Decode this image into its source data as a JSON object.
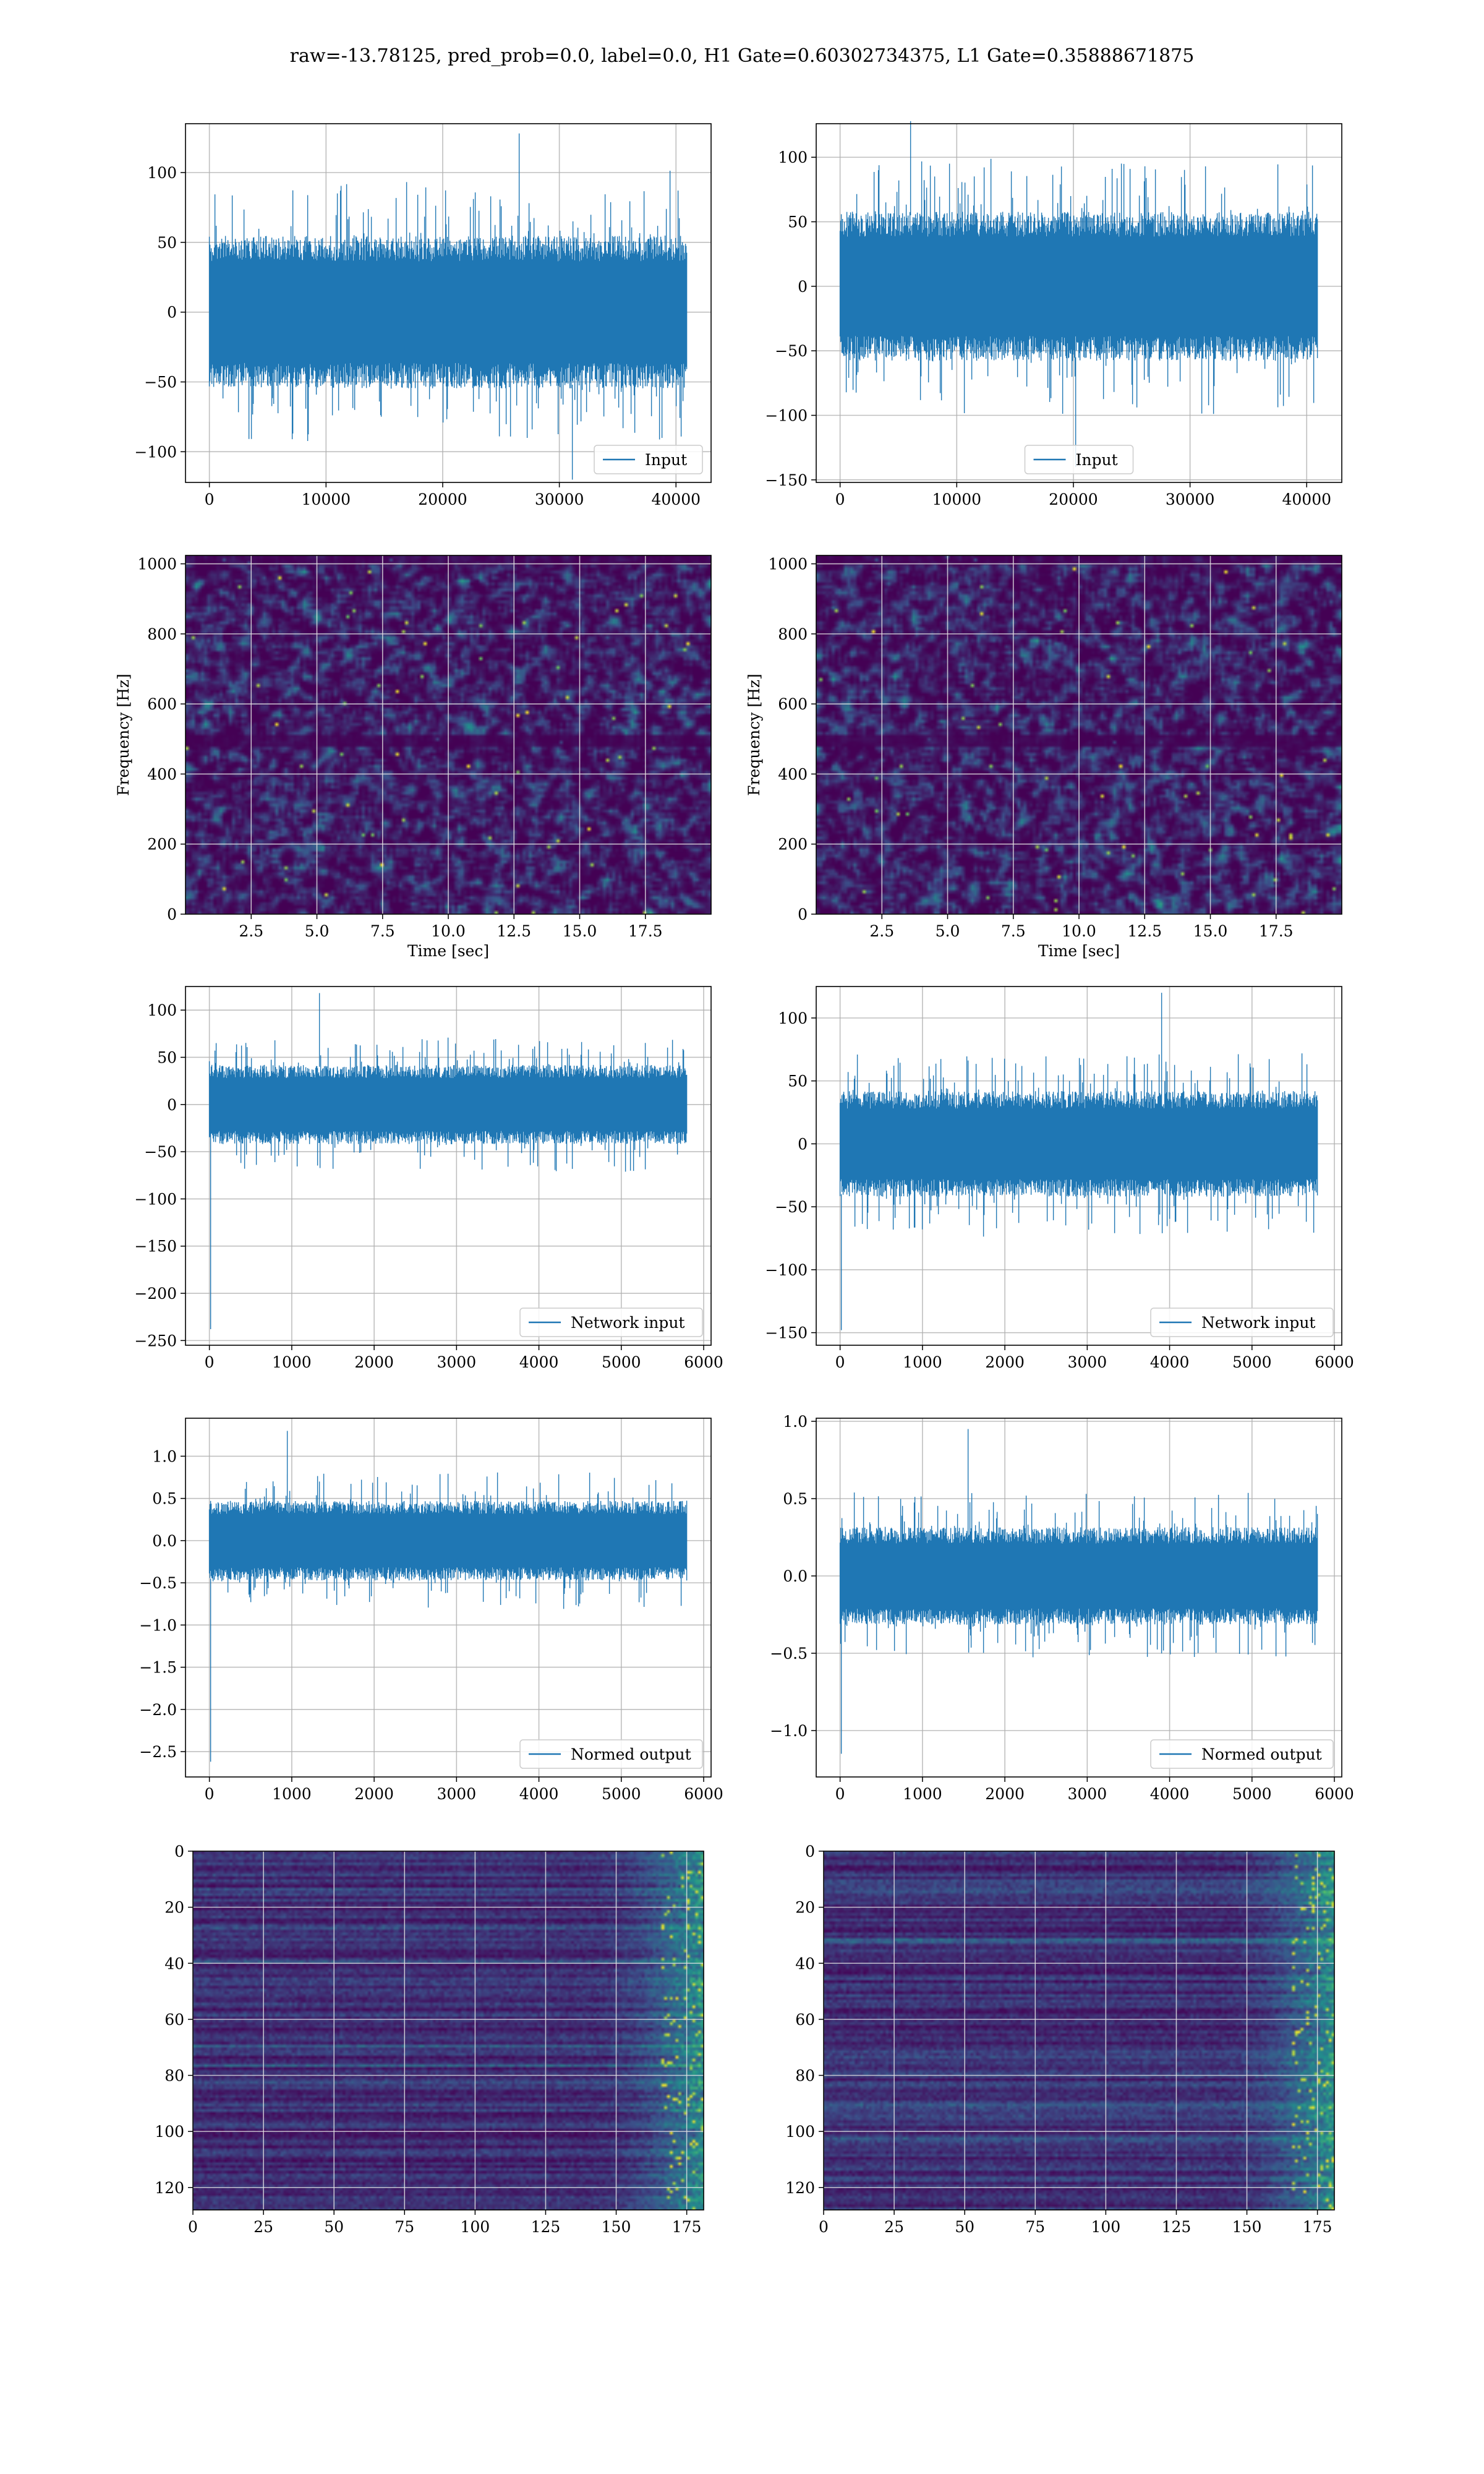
{
  "figure": {
    "suptitle": "raw=-13.78125, pred_prob=0.0, label=0.0, H1 Gate=0.60302734375, L1 Gate=0.35888671875"
  },
  "colors": {
    "line": "#1f77b4",
    "grid": "#b0b0b0",
    "viridis": [
      "#440154",
      "#3b528b",
      "#21918c",
      "#5ec962",
      "#fde725"
    ]
  },
  "chart_data": [
    {
      "id": "h1-input",
      "type": "line",
      "legend": "Input",
      "legend_loc": "lower right",
      "x_max": 40960,
      "xlim": [
        -2048,
        43008
      ],
      "ylim": [
        -122,
        135
      ],
      "xticks": [
        0,
        10000,
        20000,
        30000,
        40000
      ],
      "xtick_labels": [
        "0",
        "10000",
        "20000",
        "30000",
        "40000"
      ],
      "yticks": [
        -100,
        -50,
        0,
        50,
        100
      ],
      "ytick_labels": [
        "−100",
        "−50",
        "0",
        "50",
        "100"
      ],
      "amplitude": 52,
      "peak_high": 128,
      "peak_low": -120,
      "grid": true
    },
    {
      "id": "l1-input",
      "type": "line",
      "legend": "Input",
      "legend_loc": "lower center",
      "x_max": 40960,
      "xlim": [
        -2048,
        43008
      ],
      "ylim": [
        -152,
        126
      ],
      "xticks": [
        0,
        10000,
        20000,
        30000,
        40000
      ],
      "xtick_labels": [
        "0",
        "10000",
        "20000",
        "30000",
        "40000"
      ],
      "yticks": [
        -150,
        -100,
        -50,
        0,
        50,
        100
      ],
      "ytick_labels": [
        "−150",
        "−100",
        "−50",
        "0",
        "50",
        "100"
      ],
      "amplitude": 55,
      "peak_high": 128,
      "peak_low": -140,
      "grid": true
    },
    {
      "id": "h1-spectrogram",
      "type": "heatmap",
      "xlim": [
        0,
        20
      ],
      "ylim": [
        0,
        1024
      ],
      "xticks": [
        2.5,
        5.0,
        7.5,
        10.0,
        12.5,
        15.0,
        17.5
      ],
      "xtick_labels": [
        "2.5",
        "5.0",
        "7.5",
        "10.0",
        "12.5",
        "15.0",
        "17.5"
      ],
      "yticks": [
        0,
        200,
        400,
        600,
        800,
        1000
      ],
      "ytick_labels": [
        "0",
        "200",
        "400",
        "600",
        "800",
        "1000"
      ],
      "xlabel": "Time [sec]",
      "ylabel": "Frequency [Hz]",
      "grid": true
    },
    {
      "id": "l1-spectrogram",
      "type": "heatmap",
      "xlim": [
        0,
        20
      ],
      "ylim": [
        0,
        1024
      ],
      "xticks": [
        2.5,
        5.0,
        7.5,
        10.0,
        12.5,
        15.0,
        17.5
      ],
      "xtick_labels": [
        "2.5",
        "5.0",
        "7.5",
        "10.0",
        "12.5",
        "15.0",
        "17.5"
      ],
      "yticks": [
        0,
        200,
        400,
        600,
        800,
        1000
      ],
      "ytick_labels": [
        "0",
        "200",
        "400",
        "600",
        "800",
        "1000"
      ],
      "xlabel": "Time [sec]",
      "ylabel": "Frequency [Hz]",
      "grid": true
    },
    {
      "id": "h1-network-input",
      "type": "line",
      "legend": "Network input",
      "legend_loc": "lower right",
      "x_max": 5800,
      "xlim": [
        -290,
        6090
      ],
      "ylim": [
        -255,
        125
      ],
      "xticks": [
        0,
        1000,
        2000,
        3000,
        4000,
        5000,
        6000
      ],
      "xtick_labels": [
        "0",
        "1000",
        "2000",
        "3000",
        "4000",
        "5000",
        "6000"
      ],
      "yticks": [
        -250,
        -200,
        -150,
        -100,
        -50,
        0,
        50,
        100
      ],
      "ytick_labels": [
        "−250",
        "−200",
        "−150",
        "−100",
        "−50",
        "0",
        "50",
        "100"
      ],
      "amplitude": 40,
      "peak_high": 118,
      "peak_low": -238,
      "grid": true
    },
    {
      "id": "l1-network-input",
      "type": "line",
      "legend": "Network input",
      "legend_loc": "lower right",
      "x_max": 5800,
      "xlim": [
        -290,
        6090
      ],
      "ylim": [
        -160,
        125
      ],
      "xticks": [
        0,
        1000,
        2000,
        3000,
        4000,
        5000,
        6000
      ],
      "xtick_labels": [
        "0",
        "1000",
        "2000",
        "3000",
        "4000",
        "5000",
        "6000"
      ],
      "yticks": [
        -150,
        -100,
        -50,
        0,
        50,
        100
      ],
      "ytick_labels": [
        "−150",
        "−100",
        "−50",
        "0",
        "50",
        "100"
      ],
      "amplitude": 40,
      "peak_high": 120,
      "peak_low": -148,
      "grid": true
    },
    {
      "id": "h1-normed-output",
      "type": "line",
      "legend": "Normed output",
      "legend_loc": "lower right",
      "x_max": 5800,
      "xlim": [
        -290,
        6090
      ],
      "ylim": [
        -2.8,
        1.45
      ],
      "xticks": [
        0,
        1000,
        2000,
        3000,
        4000,
        5000,
        6000
      ],
      "xtick_labels": [
        "0",
        "1000",
        "2000",
        "3000",
        "4000",
        "5000",
        "6000"
      ],
      "yticks": [
        -2.5,
        -2.0,
        -1.5,
        -1.0,
        -0.5,
        0.0,
        0.5,
        1.0
      ],
      "ytick_labels": [
        "−2.5",
        "−2.0",
        "−1.5",
        "−1.0",
        "−0.5",
        "0.0",
        "0.5",
        "1.0"
      ],
      "amplitude": 0.45,
      "peak_high": 1.3,
      "peak_low": -2.62,
      "grid": true
    },
    {
      "id": "l1-normed-output",
      "type": "line",
      "legend": "Normed output",
      "legend_loc": "lower right",
      "x_max": 5800,
      "xlim": [
        -290,
        6090
      ],
      "ylim": [
        -1.3,
        1.02
      ],
      "xticks": [
        0,
        1000,
        2000,
        3000,
        4000,
        5000,
        6000
      ],
      "xtick_labels": [
        "0",
        "1000",
        "2000",
        "3000",
        "4000",
        "5000",
        "6000"
      ],
      "yticks": [
        -1.0,
        -0.5,
        0.0,
        0.5,
        1.0
      ],
      "ytick_labels": [
        "−1.0",
        "−0.5",
        "0.0",
        "0.5",
        "1.0"
      ],
      "amplitude": 0.3,
      "peak_high": 0.95,
      "peak_low": -1.15,
      "grid": true
    },
    {
      "id": "h1-activation-map",
      "type": "heatmap",
      "xlim": [
        0,
        181
      ],
      "ylim": [
        128,
        0
      ],
      "xticks": [
        0,
        25,
        50,
        75,
        100,
        125,
        150,
        175
      ],
      "xtick_labels": [
        "0",
        "25",
        "50",
        "75",
        "100",
        "125",
        "150",
        "175"
      ],
      "yticks": [
        0,
        20,
        40,
        60,
        80,
        100,
        120
      ],
      "ytick_labels": [
        "0",
        "20",
        "40",
        "60",
        "80",
        "100",
        "120"
      ],
      "grid": true
    },
    {
      "id": "l1-activation-map",
      "type": "heatmap",
      "xlim": [
        0,
        181
      ],
      "ylim": [
        128,
        0
      ],
      "xticks": [
        0,
        25,
        50,
        75,
        100,
        125,
        150,
        175
      ],
      "xtick_labels": [
        "0",
        "25",
        "50",
        "75",
        "100",
        "125",
        "150",
        "175"
      ],
      "yticks": [
        0,
        20,
        40,
        60,
        80,
        100,
        120
      ],
      "ytick_labels": [
        "0",
        "20",
        "40",
        "60",
        "80",
        "100",
        "120"
      ],
      "grid": true
    }
  ]
}
